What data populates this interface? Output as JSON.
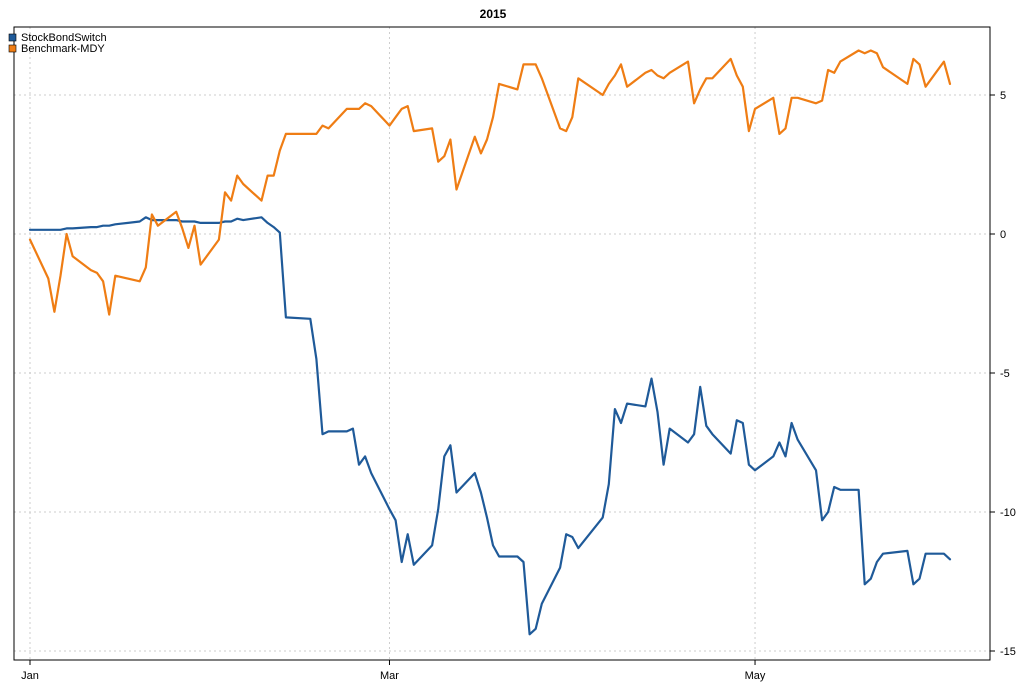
{
  "chart_data": {
    "type": "line",
    "title": "2015",
    "xlabel": "",
    "ylabel": "",
    "x_tick_labels": [
      "Jan",
      "Mar",
      "May"
    ],
    "y_ticks": [
      5,
      0,
      -5,
      -10,
      -15
    ],
    "y_tick_labels": [
      "5",
      "0",
      "-5",
      "-10",
      "-15"
    ],
    "ylim": [
      -15,
      8
    ],
    "y_axis_side": "right",
    "grid": true,
    "legend_position": "top-left",
    "x_start": "2015-01-02",
    "x_end": "2015-06-02",
    "series": [
      {
        "name": "StockBondSwitch",
        "color": "#1f5a99",
        "points": [
          [
            "2015-01-02",
            0.15
          ],
          [
            "2015-01-05",
            0.15
          ],
          [
            "2015-01-06",
            0.15
          ],
          [
            "2015-01-07",
            0.15
          ],
          [
            "2015-01-08",
            0.2
          ],
          [
            "2015-01-09",
            0.2
          ],
          [
            "2015-01-12",
            0.25
          ],
          [
            "2015-01-13",
            0.25
          ],
          [
            "2015-01-14",
            0.3
          ],
          [
            "2015-01-15",
            0.3
          ],
          [
            "2015-01-16",
            0.35
          ],
          [
            "2015-01-20",
            0.45
          ],
          [
            "2015-01-21",
            0.6
          ],
          [
            "2015-01-22",
            0.5
          ],
          [
            "2015-01-23",
            0.5
          ],
          [
            "2015-01-26",
            0.5
          ],
          [
            "2015-01-27",
            0.45
          ],
          [
            "2015-01-28",
            0.45
          ],
          [
            "2015-01-29",
            0.45
          ],
          [
            "2015-01-30",
            0.4
          ],
          [
            "2015-02-02",
            0.4
          ],
          [
            "2015-02-03",
            0.45
          ],
          [
            "2015-02-04",
            0.45
          ],
          [
            "2015-02-05",
            0.55
          ],
          [
            "2015-02-06",
            0.5
          ],
          [
            "2015-02-09",
            0.6
          ],
          [
            "2015-02-10",
            0.4
          ],
          [
            "2015-02-11",
            0.25
          ],
          [
            "2015-02-12",
            0.05
          ],
          [
            "2015-02-13",
            -3.0
          ],
          [
            "2015-02-17",
            -3.05
          ],
          [
            "2015-02-18",
            -4.5
          ],
          [
            "2015-02-19",
            -7.2
          ],
          [
            "2015-02-20",
            -7.1
          ],
          [
            "2015-02-23",
            -7.1
          ],
          [
            "2015-02-24",
            -7.0
          ],
          [
            "2015-02-25",
            -8.3
          ],
          [
            "2015-02-26",
            -8.0
          ],
          [
            "2015-02-27",
            -8.6
          ],
          [
            "2015-03-02",
            -9.9
          ],
          [
            "2015-03-03",
            -10.3
          ],
          [
            "2015-03-04",
            -11.8
          ],
          [
            "2015-03-05",
            -10.8
          ],
          [
            "2015-03-06",
            -11.9
          ],
          [
            "2015-03-09",
            -11.2
          ],
          [
            "2015-03-10",
            -9.9
          ],
          [
            "2015-03-11",
            -8.0
          ],
          [
            "2015-03-12",
            -7.6
          ],
          [
            "2015-03-13",
            -9.3
          ],
          [
            "2015-03-16",
            -8.6
          ],
          [
            "2015-03-17",
            -9.3
          ],
          [
            "2015-03-18",
            -10.2
          ],
          [
            "2015-03-19",
            -11.2
          ],
          [
            "2015-03-20",
            -11.6
          ],
          [
            "2015-03-23",
            -11.6
          ],
          [
            "2015-03-24",
            -11.8
          ],
          [
            "2015-03-25",
            -14.4
          ],
          [
            "2015-03-26",
            -14.2
          ],
          [
            "2015-03-27",
            -13.3
          ],
          [
            "2015-03-30",
            -12.0
          ],
          [
            "2015-03-31",
            -10.8
          ],
          [
            "2015-04-01",
            -10.9
          ],
          [
            "2015-04-02",
            -11.3
          ],
          [
            "2015-04-06",
            -10.2
          ],
          [
            "2015-04-07",
            -9.0
          ],
          [
            "2015-04-08",
            -6.3
          ],
          [
            "2015-04-09",
            -6.8
          ],
          [
            "2015-04-10",
            -6.1
          ],
          [
            "2015-04-13",
            -6.2
          ],
          [
            "2015-04-14",
            -5.2
          ],
          [
            "2015-04-15",
            -6.4
          ],
          [
            "2015-04-16",
            -8.3
          ],
          [
            "2015-04-17",
            -7.0
          ],
          [
            "2015-04-20",
            -7.5
          ],
          [
            "2015-04-21",
            -7.2
          ],
          [
            "2015-04-22",
            -5.5
          ],
          [
            "2015-04-23",
            -6.9
          ],
          [
            "2015-04-24",
            -7.2
          ],
          [
            "2015-04-27",
            -7.9
          ],
          [
            "2015-04-28",
            -6.7
          ],
          [
            "2015-04-29",
            -6.8
          ],
          [
            "2015-04-30",
            -8.3
          ],
          [
            "2015-05-01",
            -8.5
          ],
          [
            "2015-05-04",
            -8.0
          ],
          [
            "2015-05-05",
            -7.5
          ],
          [
            "2015-05-06",
            -8.0
          ],
          [
            "2015-05-07",
            -6.8
          ],
          [
            "2015-05-08",
            -7.4
          ],
          [
            "2015-05-11",
            -8.5
          ],
          [
            "2015-05-12",
            -10.3
          ],
          [
            "2015-05-13",
            -10.0
          ],
          [
            "2015-05-14",
            -9.1
          ],
          [
            "2015-05-15",
            -9.2
          ],
          [
            "2015-05-18",
            -9.2
          ],
          [
            "2015-05-19",
            -12.6
          ],
          [
            "2015-05-20",
            -12.4
          ],
          [
            "2015-05-21",
            -11.8
          ],
          [
            "2015-05-22",
            -11.5
          ],
          [
            "2015-05-26",
            -11.4
          ],
          [
            "2015-05-27",
            -12.6
          ],
          [
            "2015-05-28",
            -12.4
          ],
          [
            "2015-05-29",
            -11.5
          ],
          [
            "2015-06-01",
            -11.5
          ],
          [
            "2015-06-02",
            -11.7
          ]
        ]
      },
      {
        "name": "Benchmark-MDY",
        "color": "#ef7d14",
        "points": [
          [
            "2015-01-02",
            -0.2
          ],
          [
            "2015-01-05",
            -1.6
          ],
          [
            "2015-01-06",
            -2.8
          ],
          [
            "2015-01-07",
            -1.5
          ],
          [
            "2015-01-08",
            0.0
          ],
          [
            "2015-01-09",
            -0.8
          ],
          [
            "2015-01-12",
            -1.3
          ],
          [
            "2015-01-13",
            -1.4
          ],
          [
            "2015-01-14",
            -1.7
          ],
          [
            "2015-01-15",
            -2.9
          ],
          [
            "2015-01-16",
            -1.5
          ],
          [
            "2015-01-20",
            -1.7
          ],
          [
            "2015-01-21",
            -1.2
          ],
          [
            "2015-01-22",
            0.7
          ],
          [
            "2015-01-23",
            0.3
          ],
          [
            "2015-01-26",
            0.8
          ],
          [
            "2015-01-27",
            0.2
          ],
          [
            "2015-01-28",
            -0.5
          ],
          [
            "2015-01-29",
            0.3
          ],
          [
            "2015-01-30",
            -1.1
          ],
          [
            "2015-02-02",
            -0.2
          ],
          [
            "2015-02-03",
            1.5
          ],
          [
            "2015-02-04",
            1.2
          ],
          [
            "2015-02-05",
            2.1
          ],
          [
            "2015-02-06",
            1.8
          ],
          [
            "2015-02-09",
            1.2
          ],
          [
            "2015-02-10",
            2.1
          ],
          [
            "2015-02-11",
            2.1
          ],
          [
            "2015-02-12",
            3.0
          ],
          [
            "2015-02-13",
            3.6
          ],
          [
            "2015-02-17",
            3.6
          ],
          [
            "2015-02-18",
            3.6
          ],
          [
            "2015-02-19",
            3.9
          ],
          [
            "2015-02-20",
            3.8
          ],
          [
            "2015-02-23",
            4.5
          ],
          [
            "2015-02-24",
            4.5
          ],
          [
            "2015-02-25",
            4.5
          ],
          [
            "2015-02-26",
            4.7
          ],
          [
            "2015-02-27",
            4.6
          ],
          [
            "2015-03-02",
            3.9
          ],
          [
            "2015-03-03",
            4.2
          ],
          [
            "2015-03-04",
            4.5
          ],
          [
            "2015-03-05",
            4.6
          ],
          [
            "2015-03-06",
            3.7
          ],
          [
            "2015-03-09",
            3.8
          ],
          [
            "2015-03-10",
            2.6
          ],
          [
            "2015-03-11",
            2.8
          ],
          [
            "2015-03-12",
            3.4
          ],
          [
            "2015-03-13",
            1.6
          ],
          [
            "2015-03-16",
            3.5
          ],
          [
            "2015-03-17",
            2.9
          ],
          [
            "2015-03-18",
            3.4
          ],
          [
            "2015-03-19",
            4.2
          ],
          [
            "2015-03-20",
            5.4
          ],
          [
            "2015-03-23",
            5.2
          ],
          [
            "2015-03-24",
            6.1
          ],
          [
            "2015-03-25",
            6.1
          ],
          [
            "2015-03-26",
            6.1
          ],
          [
            "2015-03-27",
            5.6
          ],
          [
            "2015-03-30",
            3.8
          ],
          [
            "2015-03-31",
            3.7
          ],
          [
            "2015-04-01",
            4.2
          ],
          [
            "2015-04-02",
            5.6
          ],
          [
            "2015-04-06",
            5.0
          ],
          [
            "2015-04-07",
            5.4
          ],
          [
            "2015-04-08",
            5.7
          ],
          [
            "2015-04-09",
            6.1
          ],
          [
            "2015-04-10",
            5.3
          ],
          [
            "2015-04-13",
            5.8
          ],
          [
            "2015-04-14",
            5.9
          ],
          [
            "2015-04-15",
            5.7
          ],
          [
            "2015-04-16",
            5.6
          ],
          [
            "2015-04-17",
            5.8
          ],
          [
            "2015-04-20",
            6.2
          ],
          [
            "2015-04-21",
            4.7
          ],
          [
            "2015-04-22",
            5.2
          ],
          [
            "2015-04-23",
            5.6
          ],
          [
            "2015-04-24",
            5.6
          ],
          [
            "2015-04-27",
            6.3
          ],
          [
            "2015-04-28",
            5.7
          ],
          [
            "2015-04-29",
            5.3
          ],
          [
            "2015-04-30",
            3.7
          ],
          [
            "2015-05-01",
            4.5
          ],
          [
            "2015-05-04",
            4.9
          ],
          [
            "2015-05-05",
            3.6
          ],
          [
            "2015-05-06",
            3.8
          ],
          [
            "2015-05-07",
            4.9
          ],
          [
            "2015-05-08",
            4.9
          ],
          [
            "2015-05-11",
            4.7
          ],
          [
            "2015-05-12",
            4.8
          ],
          [
            "2015-05-13",
            5.9
          ],
          [
            "2015-05-14",
            5.8
          ],
          [
            "2015-05-15",
            6.2
          ],
          [
            "2015-05-18",
            6.6
          ],
          [
            "2015-05-19",
            6.5
          ],
          [
            "2015-05-20",
            6.6
          ],
          [
            "2015-05-21",
            6.5
          ],
          [
            "2015-05-22",
            6.0
          ],
          [
            "2015-05-26",
            5.4
          ],
          [
            "2015-05-27",
            6.3
          ],
          [
            "2015-05-28",
            6.1
          ],
          [
            "2015-05-29",
            5.3
          ],
          [
            "2015-06-01",
            6.2
          ],
          [
            "2015-06-02",
            5.4
          ]
        ]
      }
    ]
  }
}
